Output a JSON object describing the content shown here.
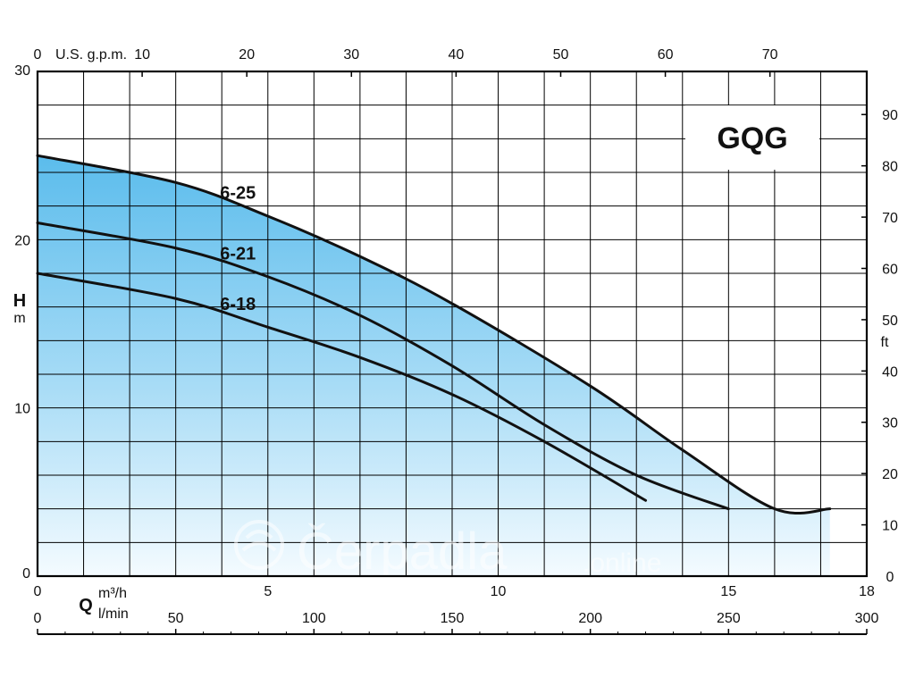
{
  "chart_data": {
    "type": "line",
    "title": "GQG",
    "series": [
      {
        "name": "6-25",
        "x": [
          0,
          3,
          5,
          7,
          9,
          12,
          14,
          16,
          17.2
        ],
        "y": [
          25,
          23.4,
          21.4,
          19,
          16.2,
          11.3,
          7.5,
          4,
          4
        ]
      },
      {
        "name": "6-21",
        "x": [
          0,
          3,
          5,
          7,
          9,
          11,
          13,
          15
        ],
        "y": [
          21,
          19.5,
          17.8,
          15.5,
          12.5,
          9,
          6,
          4
        ]
      },
      {
        "name": "6-18",
        "x": [
          0,
          3,
          5,
          7,
          9,
          11,
          13.2
        ],
        "y": [
          18,
          16.5,
          14.8,
          13,
          10.8,
          8,
          4.5
        ]
      }
    ],
    "axes": {
      "left": {
        "label": "H",
        "unit": "m",
        "range": [
          0,
          30
        ],
        "ticks": [
          0,
          10,
          20,
          30
        ]
      },
      "right": {
        "label": "ft",
        "range": [
          0,
          98.4
        ],
        "ticks": [
          0,
          10,
          20,
          30,
          40,
          50,
          60,
          70,
          80,
          90
        ]
      },
      "bottom": {
        "label": "Q",
        "unit": "m³/h",
        "unit2": "l/min",
        "range": [
          0,
          18
        ],
        "ticks": [
          0,
          5,
          10,
          15,
          18
        ]
      },
      "bottom2": {
        "range": [
          0,
          300
        ],
        "ticks": [
          0,
          50,
          100,
          150,
          200,
          250,
          300
        ]
      },
      "top": {
        "unit": "U.S. g.p.m.",
        "range": [
          0,
          79.25
        ],
        "ticks": [
          0,
          10,
          20,
          30,
          40,
          50,
          60,
          70
        ]
      }
    },
    "grid": true
  },
  "watermark": "Čerpadla",
  "watermark_suffix": ".online"
}
